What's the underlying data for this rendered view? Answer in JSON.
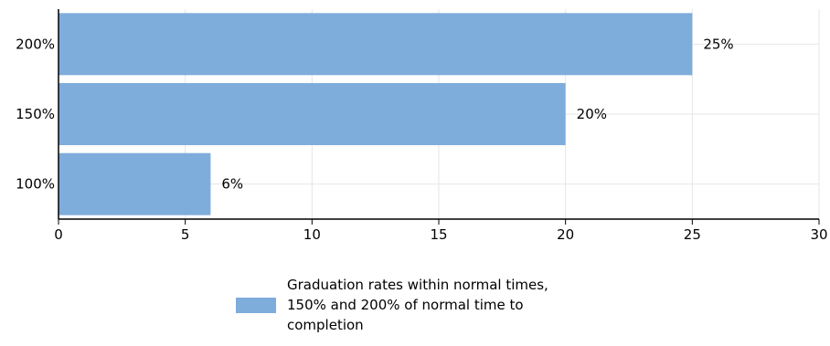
{
  "chart_data": {
    "type": "bar",
    "orientation": "horizontal",
    "categories": [
      "200%",
      "150%",
      "100%"
    ],
    "values": [
      25,
      20,
      6
    ],
    "data_labels": [
      "25%",
      "20%",
      "6%"
    ],
    "x_ticks": [
      "0",
      "5",
      "10",
      "15",
      "20",
      "25",
      "30"
    ],
    "xlim": [
      0,
      30
    ],
    "grid": true,
    "bar_color": "#7eaddc",
    "legend": {
      "placement": "bottom",
      "text": "Graduation rates within normal times, 150% and 200% of normal time to completion"
    }
  }
}
